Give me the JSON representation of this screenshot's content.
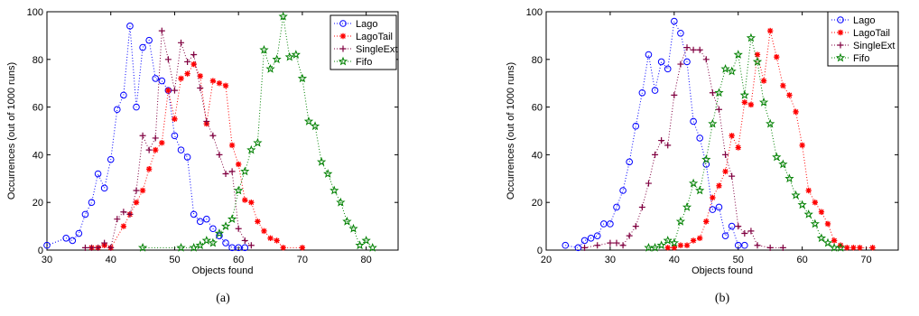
{
  "styles": {
    "Lago": {
      "color": "#0000ff",
      "marker": "circle"
    },
    "LagoTail": {
      "color": "#ff0000",
      "marker": "asterisk"
    },
    "SingleExt": {
      "color": "#800040",
      "marker": "plus"
    },
    "Fifo": {
      "color": "#008000",
      "marker": "star"
    }
  },
  "chart_data": [
    {
      "type": "scatter",
      "caption": "(a)",
      "xlabel": "Objects found",
      "ylabel": "Occurrences (out of 1000 runs)",
      "xlim": [
        30,
        85
      ],
      "ylim": [
        0,
        100
      ],
      "xticks": [
        30,
        40,
        50,
        60,
        70,
        80
      ],
      "yticks": [
        0,
        20,
        40,
        60,
        80,
        100
      ],
      "legend_position": "top-right",
      "series": [
        {
          "name": "Lago",
          "points": [
            [
              30,
              2
            ],
            [
              33,
              5
            ],
            [
              34,
              4
            ],
            [
              35,
              7
            ],
            [
              36,
              15
            ],
            [
              37,
              20
            ],
            [
              38,
              32
            ],
            [
              39,
              26
            ],
            [
              40,
              38
            ],
            [
              41,
              59
            ],
            [
              42,
              65
            ],
            [
              43,
              94
            ],
            [
              44,
              60
            ],
            [
              45,
              85
            ],
            [
              46,
              88
            ],
            [
              47,
              72
            ],
            [
              48,
              71
            ],
            [
              49,
              67
            ],
            [
              50,
              48
            ],
            [
              51,
              42
            ],
            [
              52,
              39
            ],
            [
              53,
              15
            ],
            [
              54,
              12
            ],
            [
              55,
              13
            ],
            [
              56,
              9
            ],
            [
              57,
              6
            ],
            [
              58,
              3
            ],
            [
              59,
              1
            ],
            [
              60,
              1
            ],
            [
              61,
              1
            ]
          ]
        },
        {
          "name": "LagoTail",
          "points": [
            [
              37,
              1
            ],
            [
              38,
              1
            ],
            [
              39,
              2
            ],
            [
              40,
              1
            ],
            [
              42,
              10
            ],
            [
              43,
              15
            ],
            [
              44,
              20
            ],
            [
              45,
              25
            ],
            [
              46,
              34
            ],
            [
              47,
              42
            ],
            [
              48,
              45
            ],
            [
              49,
              67
            ],
            [
              50,
              55
            ],
            [
              51,
              72
            ],
            [
              52,
              74
            ],
            [
              53,
              78
            ],
            [
              54,
              73
            ],
            [
              55,
              53
            ],
            [
              56,
              71
            ],
            [
              57,
              70
            ],
            [
              58,
              69
            ],
            [
              59,
              44
            ],
            [
              60,
              36
            ],
            [
              61,
              21
            ],
            [
              62,
              20
            ],
            [
              63,
              12
            ],
            [
              64,
              8
            ],
            [
              65,
              5
            ],
            [
              66,
              4
            ],
            [
              67,
              1
            ],
            [
              70,
              1
            ]
          ]
        },
        {
          "name": "SingleExt",
          "points": [
            [
              36,
              1
            ],
            [
              37,
              1
            ],
            [
              38,
              1
            ],
            [
              39,
              3
            ],
            [
              40,
              1
            ],
            [
              41,
              13
            ],
            [
              42,
              16
            ],
            [
              43,
              15
            ],
            [
              44,
              25
            ],
            [
              45,
              48
            ],
            [
              46,
              42
            ],
            [
              47,
              47
            ],
            [
              48,
              92
            ],
            [
              49,
              80
            ],
            [
              50,
              67
            ],
            [
              51,
              87
            ],
            [
              52,
              79
            ],
            [
              53,
              82
            ],
            [
              54,
              68
            ],
            [
              55,
              54
            ],
            [
              56,
              48
            ],
            [
              57,
              40
            ],
            [
              58,
              32
            ],
            [
              59,
              33
            ],
            [
              60,
              9
            ],
            [
              61,
              4
            ],
            [
              62,
              2
            ]
          ]
        },
        {
          "name": "Fifo",
          "points": [
            [
              45,
              1
            ],
            [
              51,
              1
            ],
            [
              53,
              1
            ],
            [
              54,
              2
            ],
            [
              55,
              4
            ],
            [
              56,
              3
            ],
            [
              57,
              7
            ],
            [
              58,
              10
            ],
            [
              59,
              13
            ],
            [
              60,
              25
            ],
            [
              61,
              33
            ],
            [
              62,
              42
            ],
            [
              63,
              45
            ],
            [
              64,
              84
            ],
            [
              65,
              76
            ],
            [
              66,
              80
            ],
            [
              67,
              98
            ],
            [
              68,
              81
            ],
            [
              69,
              82
            ],
            [
              70,
              72
            ],
            [
              71,
              54
            ],
            [
              72,
              52
            ],
            [
              73,
              37
            ],
            [
              74,
              32
            ],
            [
              75,
              25
            ],
            [
              76,
              20
            ],
            [
              77,
              12
            ],
            [
              78,
              9
            ],
            [
              79,
              2
            ],
            [
              80,
              4
            ],
            [
              81,
              1
            ]
          ]
        }
      ]
    },
    {
      "type": "scatter",
      "caption": "(b)",
      "xlabel": "Objects found",
      "ylabel": "Occurrences (out of 1000 runs)",
      "xlim": [
        20,
        75
      ],
      "ylim": [
        0,
        100
      ],
      "xticks": [
        20,
        30,
        40,
        50,
        60,
        70
      ],
      "yticks": [
        0,
        20,
        40,
        60,
        80,
        100
      ],
      "legend_position": "top-right",
      "series": [
        {
          "name": "Lago",
          "points": [
            [
              23,
              2
            ],
            [
              25,
              1
            ],
            [
              26,
              4
            ],
            [
              27,
              5
            ],
            [
              28,
              6
            ],
            [
              29,
              11
            ],
            [
              30,
              11
            ],
            [
              31,
              18
            ],
            [
              32,
              25
            ],
            [
              33,
              37
            ],
            [
              34,
              52
            ],
            [
              35,
              66
            ],
            [
              36,
              82
            ],
            [
              37,
              67
            ],
            [
              38,
              79
            ],
            [
              39,
              76
            ],
            [
              40,
              96
            ],
            [
              41,
              91
            ],
            [
              42,
              79
            ],
            [
              43,
              54
            ],
            [
              44,
              47
            ],
            [
              45,
              36
            ],
            [
              46,
              17
            ],
            [
              47,
              18
            ],
            [
              48,
              6
            ],
            [
              49,
              10
            ],
            [
              50,
              2
            ],
            [
              51,
              2
            ]
          ]
        },
        {
          "name": "LagoTail",
          "points": [
            [
              39,
              1
            ],
            [
              40,
              1
            ],
            [
              41,
              2
            ],
            [
              42,
              2
            ],
            [
              43,
              4
            ],
            [
              44,
              5
            ],
            [
              45,
              12
            ],
            [
              46,
              22
            ],
            [
              47,
              27
            ],
            [
              48,
              33
            ],
            [
              49,
              48
            ],
            [
              50,
              43
            ],
            [
              51,
              62
            ],
            [
              52,
              61
            ],
            [
              53,
              82
            ],
            [
              54,
              71
            ],
            [
              55,
              92
            ],
            [
              56,
              81
            ],
            [
              57,
              69
            ],
            [
              58,
              65
            ],
            [
              59,
              58
            ],
            [
              60,
              44
            ],
            [
              61,
              25
            ],
            [
              62,
              20
            ],
            [
              63,
              16
            ],
            [
              64,
              11
            ],
            [
              65,
              4
            ],
            [
              66,
              2
            ],
            [
              67,
              1
            ],
            [
              68,
              1
            ],
            [
              69,
              1
            ],
            [
              71,
              1
            ]
          ]
        },
        {
          "name": "SingleExt",
          "points": [
            [
              26,
              1
            ],
            [
              28,
              2
            ],
            [
              30,
              3
            ],
            [
              31,
              3
            ],
            [
              32,
              2
            ],
            [
              33,
              6
            ],
            [
              34,
              10
            ],
            [
              35,
              18
            ],
            [
              36,
              28
            ],
            [
              37,
              40
            ],
            [
              38,
              46
            ],
            [
              39,
              44
            ],
            [
              40,
              65
            ],
            [
              41,
              78
            ],
            [
              42,
              85
            ],
            [
              43,
              84
            ],
            [
              44,
              84
            ],
            [
              45,
              80
            ],
            [
              46,
              66
            ],
            [
              47,
              59
            ],
            [
              48,
              40
            ],
            [
              49,
              31
            ],
            [
              50,
              10
            ],
            [
              51,
              7
            ],
            [
              52,
              8
            ],
            [
              53,
              2
            ],
            [
              55,
              1
            ],
            [
              57,
              1
            ]
          ]
        },
        {
          "name": "Fifo",
          "points": [
            [
              36,
              1
            ],
            [
              37,
              1
            ],
            [
              38,
              2
            ],
            [
              39,
              4
            ],
            [
              40,
              3
            ],
            [
              41,
              12
            ],
            [
              42,
              18
            ],
            [
              43,
              28
            ],
            [
              44,
              25
            ],
            [
              45,
              38
            ],
            [
              46,
              53
            ],
            [
              47,
              66
            ],
            [
              48,
              76
            ],
            [
              49,
              75
            ],
            [
              50,
              82
            ],
            [
              51,
              65
            ],
            [
              52,
              89
            ],
            [
              53,
              79
            ],
            [
              54,
              62
            ],
            [
              55,
              53
            ],
            [
              56,
              39
            ],
            [
              57,
              36
            ],
            [
              58,
              30
            ],
            [
              59,
              23
            ],
            [
              60,
              19
            ],
            [
              61,
              15
            ],
            [
              62,
              11
            ],
            [
              63,
              5
            ],
            [
              64,
              3
            ],
            [
              65,
              1
            ],
            [
              66,
              1
            ]
          ]
        }
      ]
    }
  ]
}
